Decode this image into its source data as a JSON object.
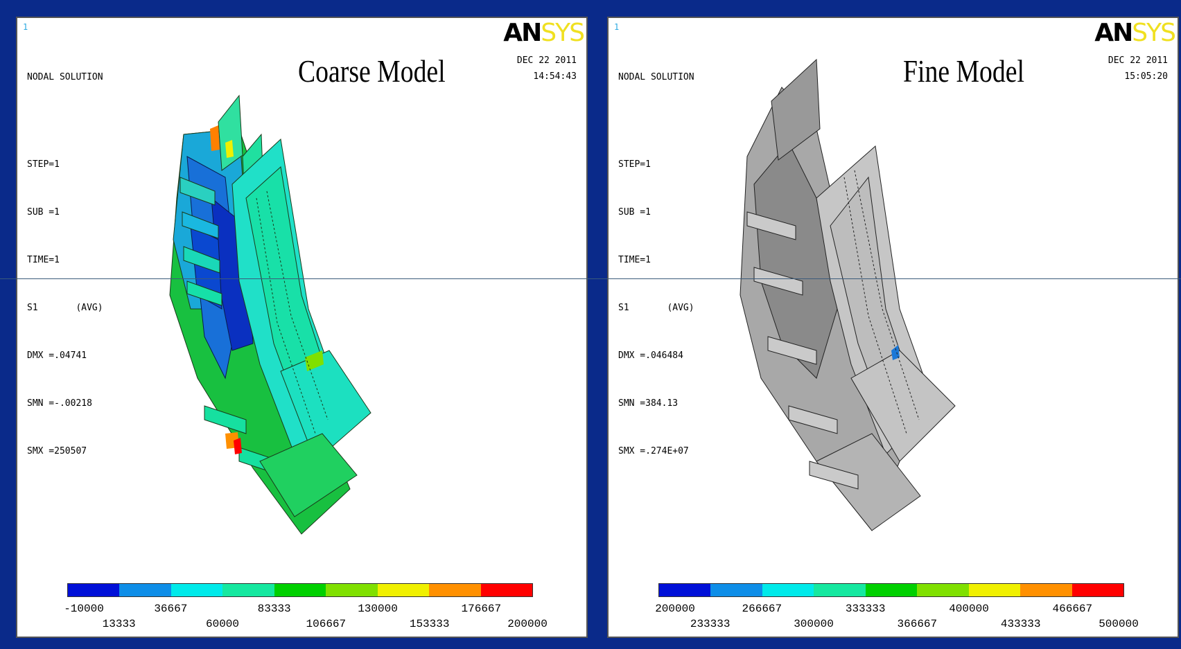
{
  "legend_colors": [
    "#0010d8",
    "#0e8ee8",
    "#00eaea",
    "#16e8a0",
    "#00d000",
    "#80e000",
    "#f0f000",
    "#ff9000",
    "#ff0000"
  ],
  "panels": [
    {
      "window_number": "1",
      "title": "Coarse Model",
      "logo_an": "AN",
      "logo_sys": "SYS",
      "date": "DEC 22 2011",
      "time": "14:54:43",
      "info": {
        "header": "NODAL SOLUTION",
        "step": "STEP=1",
        "sub": "SUB =1",
        "time": "TIME=1",
        "result": "S1       (AVG)",
        "dmx": "DMX =.04741",
        "smn": "SMN =-.00218",
        "smx": "SMX =250507"
      },
      "legend_labels_top": [
        "-10000",
        "36667",
        "83333",
        "130000",
        "176667"
      ],
      "legend_labels_bottom": [
        "13333",
        "60000",
        "106667",
        "153333",
        "200000"
      ]
    },
    {
      "window_number": "1",
      "title": "Fine Model",
      "logo_an": "AN",
      "logo_sys": "SYS",
      "date": "DEC 22 2011",
      "time": "15:05:20",
      "info": {
        "header": "NODAL SOLUTION",
        "step": "STEP=1",
        "sub": "SUB =1",
        "time": "TIME=1",
        "result": "S1       (AVG)",
        "dmx": "DMX =.046484",
        "smn": "SMN =384.13",
        "smx": "SMX =.274E+07"
      },
      "legend_labels_top": [
        "200000",
        "266667",
        "333333",
        "400000",
        "466667"
      ],
      "legend_labels_bottom": [
        "233333",
        "300000",
        "366667",
        "433333",
        "500000"
      ]
    }
  ]
}
